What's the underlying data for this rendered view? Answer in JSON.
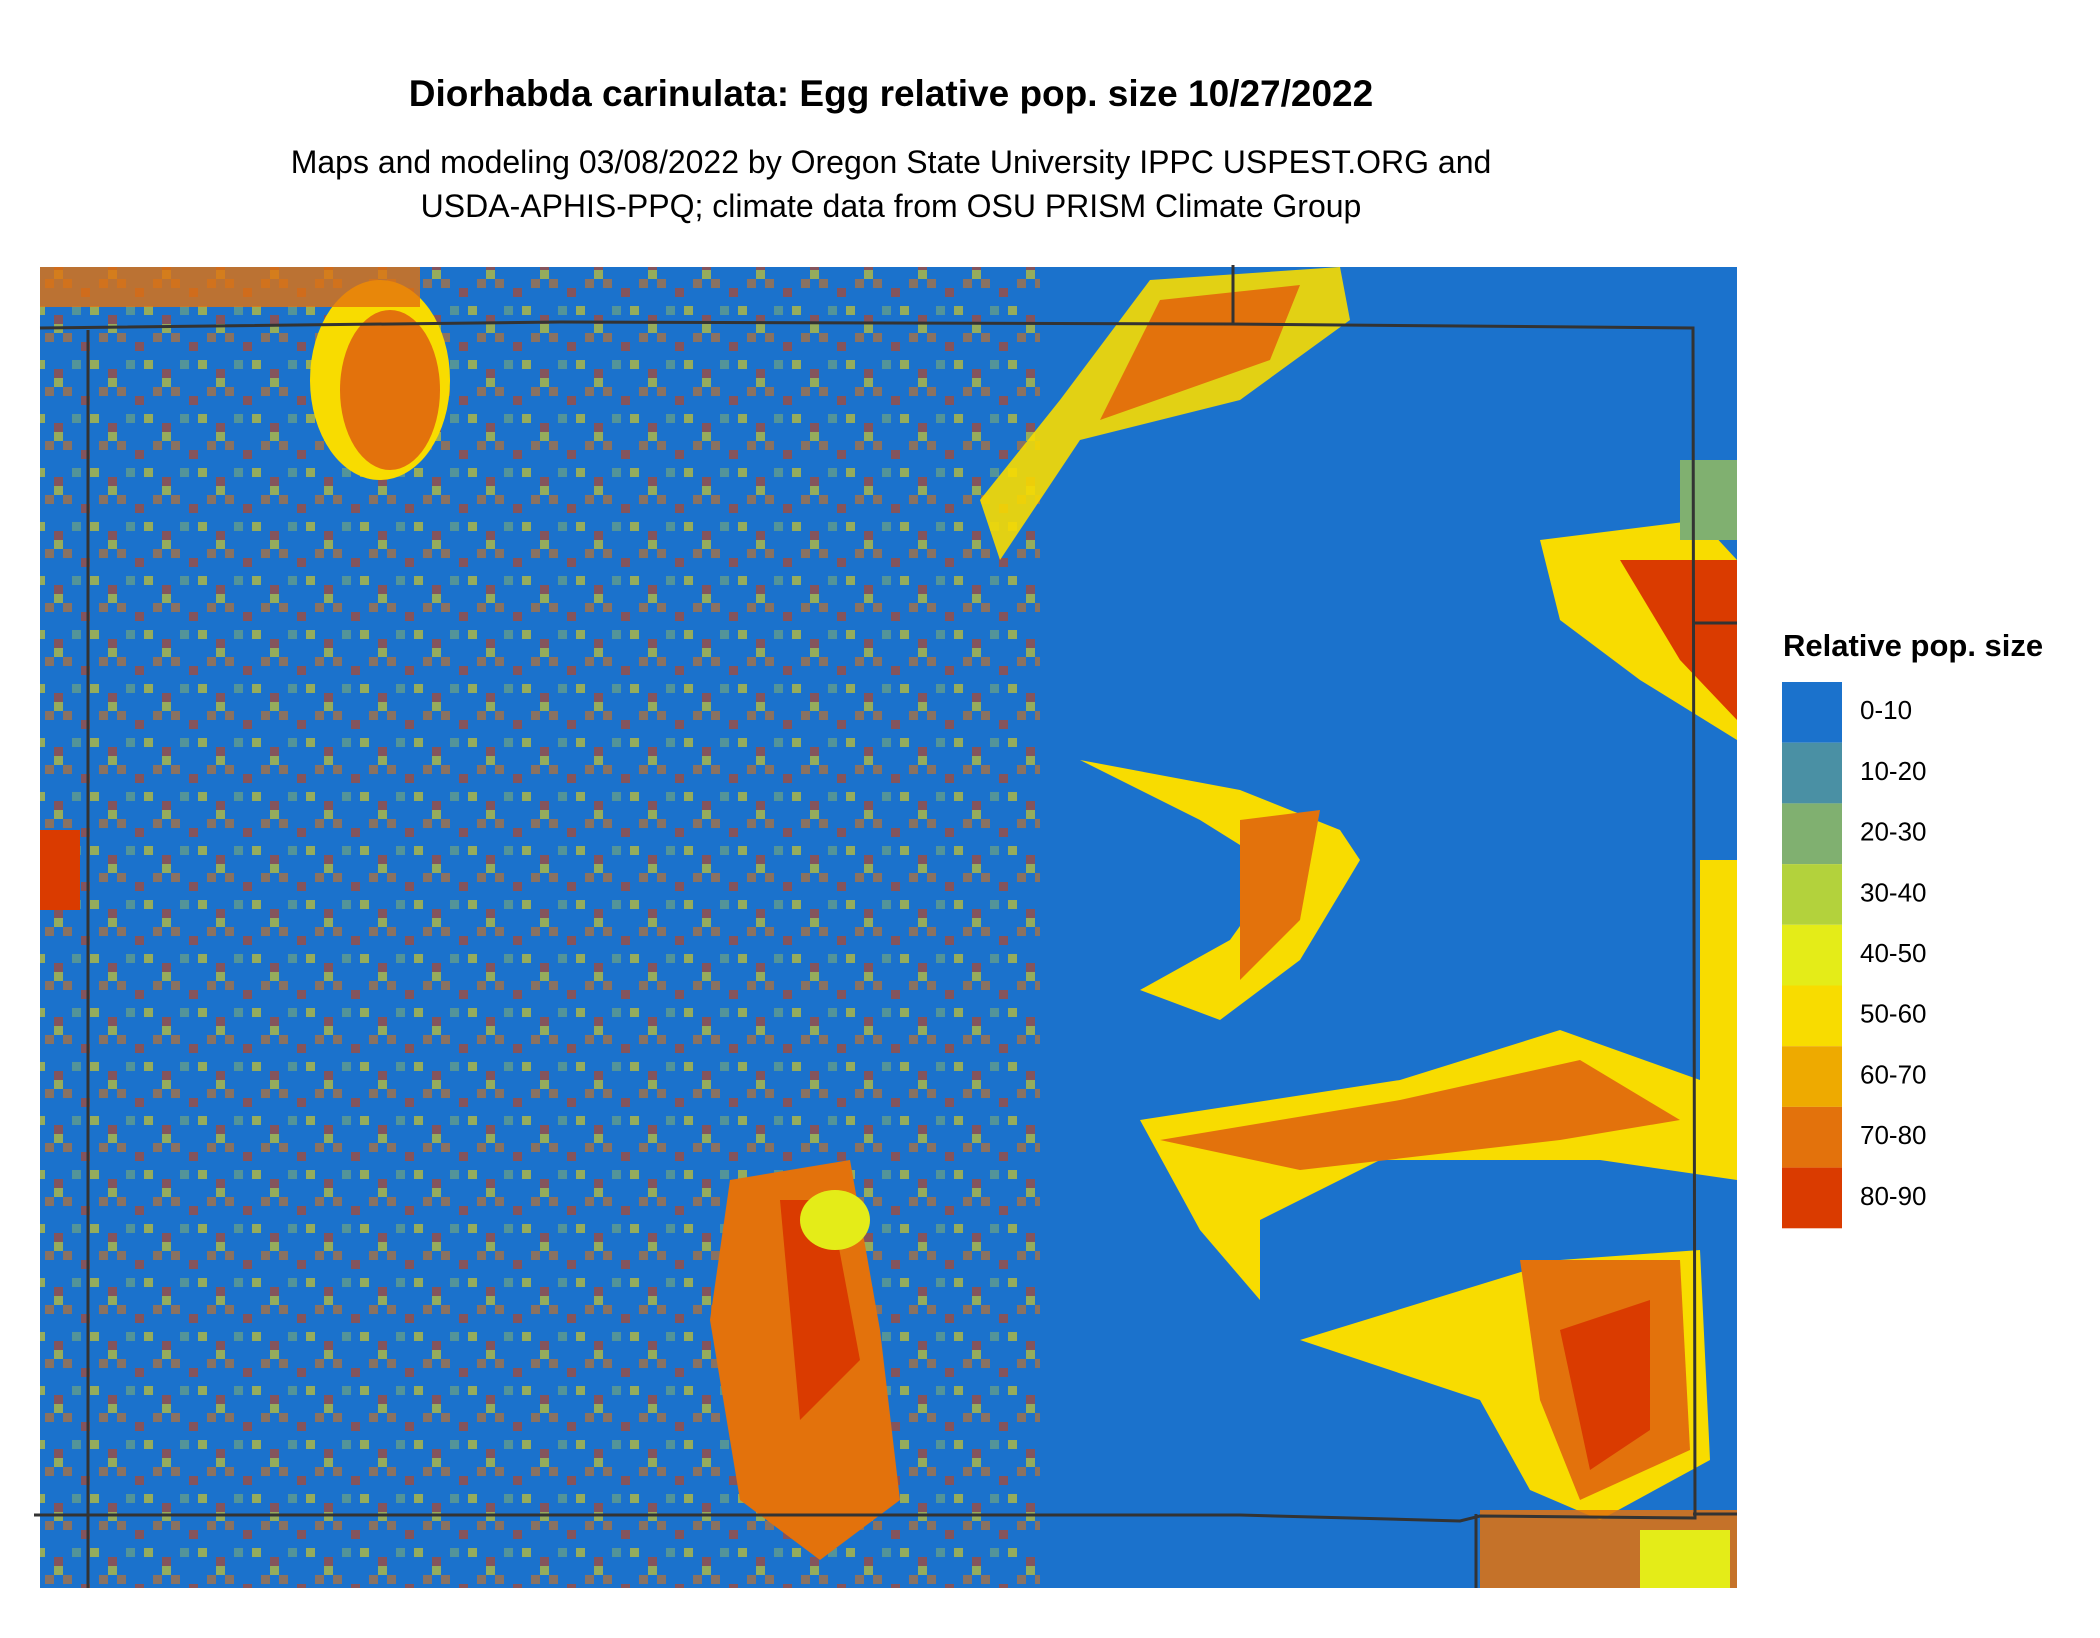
{
  "title": "Diorhabda carinulata: Egg relative pop. size 10/27/2022",
  "subtitle": [
    "Maps and modeling 03/08/2022 by Oregon State University IPPC USPEST.ORG and",
    "USDA-APHIS-PPQ; climate data from OSU PRISM Climate Group"
  ],
  "legend": {
    "title": "Relative pop. size",
    "items": [
      {
        "label": "0-10",
        "color": "#1b72cc"
      },
      {
        "label": "10-20",
        "color": "#4a90a4"
      },
      {
        "label": "20-30",
        "color": "#80b070"
      },
      {
        "label": "30-40",
        "color": "#b3d23c"
      },
      {
        "label": "40-50",
        "color": "#e4ec18"
      },
      {
        "label": "50-60",
        "color": "#f8dc00"
      },
      {
        "label": "60-70",
        "color": "#eeaa00"
      },
      {
        "label": "70-80",
        "color": "#e3720c"
      },
      {
        "label": "80-90",
        "color": "#da3b00"
      }
    ]
  }
}
